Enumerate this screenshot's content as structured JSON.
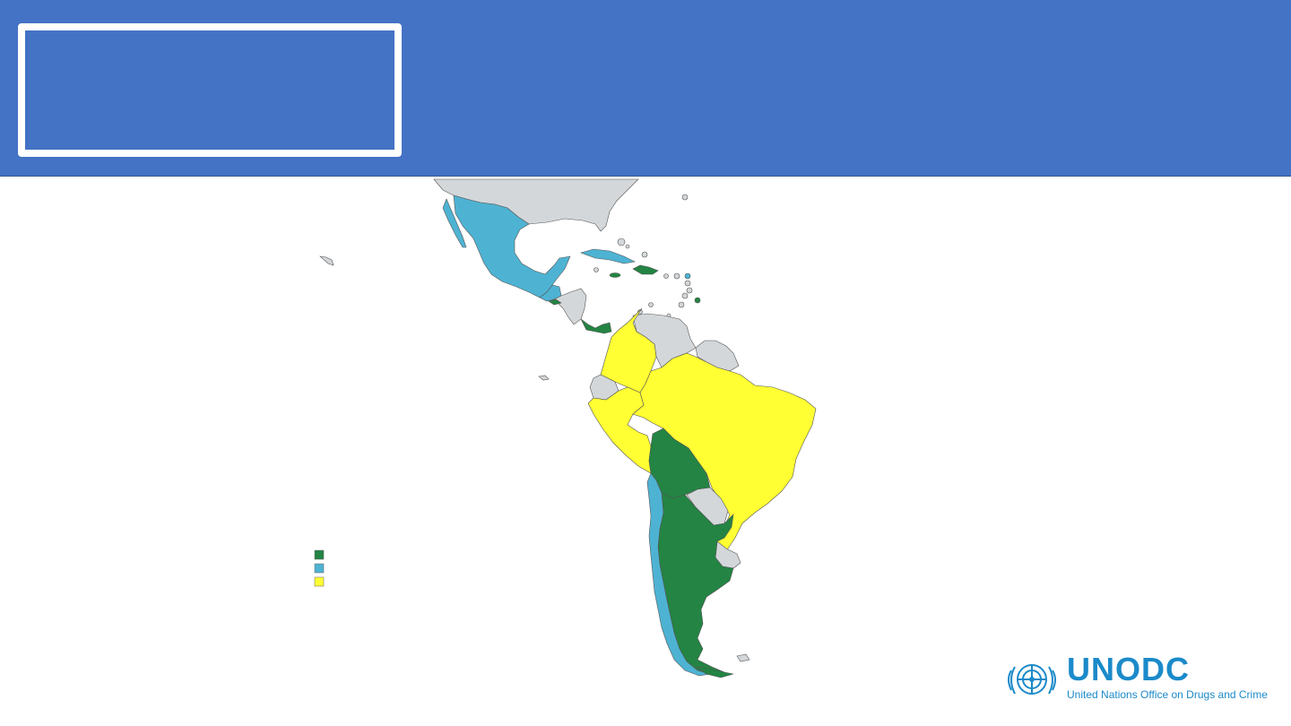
{
  "header": {
    "title": ""
  },
  "map": {
    "legend": [
      {
        "color": "#238443",
        "label": ""
      },
      {
        "color": "#4eb3d3",
        "label": ""
      },
      {
        "color": "#ffff33",
        "label": ""
      }
    ],
    "colors": {
      "green": "#238443",
      "blue": "#4eb3d3",
      "yellow": "#ffff33",
      "grey": "#d3d7da",
      "border": "#555555"
    }
  },
  "logo": {
    "name": "UNODC",
    "subtitle": "United Nations Office on Drugs and Crime",
    "icon": "un-emblem-icon"
  }
}
